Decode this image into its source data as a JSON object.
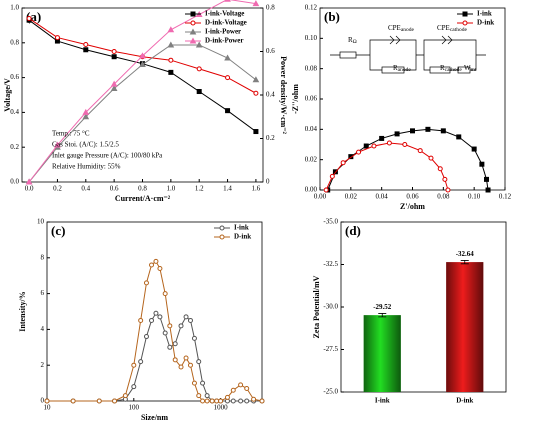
{
  "chart_data": [
    {
      "type": "line",
      "panel_label": "(a)",
      "xlabel": "Current/A·cm⁻²",
      "ylabel": "Voltage/V",
      "y2label": "Power density/W·cm⁻²",
      "x": [
        0,
        0.2,
        0.4,
        0.6,
        0.8,
        1.0,
        1.2,
        1.4,
        1.6
      ],
      "series": [
        {
          "name": "I-ink-Voltage",
          "color": "#000000",
          "marker": "square",
          "values": [
            0.93,
            0.81,
            0.76,
            0.72,
            0.68,
            0.63,
            0.52,
            0.41,
            0.29
          ]
        },
        {
          "name": "D-ink-Voltage",
          "color": "#e00000",
          "marker": "circle",
          "values": [
            0.94,
            0.83,
            0.79,
            0.75,
            0.72,
            0.7,
            0.65,
            0.6,
            0.51
          ]
        },
        {
          "name": "I-ink-Power",
          "color": "#808080",
          "marker": "triangle",
          "axis": "y2",
          "values": [
            0,
            0.16,
            0.3,
            0.43,
            0.54,
            0.63,
            0.63,
            0.57,
            0.47
          ]
        },
        {
          "name": "D-ink-Power",
          "color": "#f06ab0",
          "marker": "triangle",
          "axis": "y2",
          "values": [
            0,
            0.17,
            0.32,
            0.45,
            0.58,
            0.7,
            0.77,
            0.84,
            0.82
          ]
        }
      ],
      "xlim": [
        -0.05,
        1.65
      ],
      "xticks": [
        {
          "value": 0,
          "label": "0.0"
        },
        0.2,
        0.4,
        0.6,
        0.8,
        {
          "value": 1,
          "label": "1.0"
        },
        1.2,
        1.4,
        1.6
      ],
      "ylim": [
        0,
        1.0
      ],
      "yticks": [
        {
          "value": 0,
          "label": "0.0"
        },
        0.2,
        0.4,
        0.6,
        0.8,
        {
          "value": 1,
          "label": "1.0"
        }
      ],
      "y2lim": [
        0,
        0.8
      ],
      "y2ticks": [
        0,
        0.2,
        0.4,
        0.6,
        0.8
      ],
      "legend": "upper right",
      "annotations": [
        "Temp.: 75 °C",
        "Gas Stoi. (A/C): 1.5/2.5",
        "Inlet gauge Pressure (A/C): 100/80 kPa",
        "Relative Humidity: 55%"
      ]
    },
    {
      "type": "scatter",
      "panel_label": "(b)",
      "xlabel": "Z'/ohm",
      "ylabel": "-Z''/ohm",
      "series": [
        {
          "name": "I-ink",
          "color": "#000000",
          "marker": "square",
          "x": [
            0.005,
            0.01,
            0.02,
            0.03,
            0.04,
            0.05,
            0.06,
            0.07,
            0.08,
            0.09,
            0.1,
            0.105,
            0.108,
            0.109
          ],
          "values": [
            0,
            0.012,
            0.022,
            0.029,
            0.034,
            0.037,
            0.039,
            0.04,
            0.039,
            0.035,
            0.027,
            0.017,
            0.007,
            0
          ]
        },
        {
          "name": "D-ink",
          "color": "#e00000",
          "marker": "circle",
          "x": [
            0.004,
            0.008,
            0.015,
            0.025,
            0.035,
            0.045,
            0.055,
            0.065,
            0.072,
            0.078,
            0.081,
            0.083
          ],
          "values": [
            0,
            0.009,
            0.018,
            0.025,
            0.029,
            0.031,
            0.03,
            0.026,
            0.021,
            0.014,
            0.007,
            0
          ]
        }
      ],
      "xlim": [
        0,
        0.12
      ],
      "xticks": [
        {
          "value": 0,
          "label": "0.00"
        },
        {
          "value": 0.02,
          "label": "0.02"
        },
        {
          "value": 0.04,
          "label": "0.04"
        },
        {
          "value": 0.06,
          "label": "0.06"
        },
        {
          "value": 0.08,
          "label": "0.08"
        },
        {
          "value": 0.1,
          "label": "0.10"
        },
        {
          "value": 0.12,
          "label": "0.12"
        }
      ],
      "ylim": [
        0,
        0.12
      ],
      "yticks": [
        {
          "value": 0,
          "label": "0.00"
        },
        {
          "value": 0.02,
          "label": "0.02"
        },
        {
          "value": 0.04,
          "label": "0.04"
        },
        {
          "value": 0.06,
          "label": "0.06"
        },
        {
          "value": 0.08,
          "label": "0.08"
        },
        {
          "value": 0.1,
          "label": "0.10"
        },
        {
          "value": 0.12,
          "label": "0.12"
        }
      ],
      "legend": "upper right",
      "circuit": [
        {
          "text": "R",
          "sub": "Ω"
        },
        {
          "text": "CPE",
          "sub": "anode"
        },
        {
          "text": "R",
          "sub": "anode"
        },
        {
          "text": "CPE",
          "sub": "cathode"
        },
        {
          "text": "R",
          "sub": "cathode"
        },
        {
          "text": "W",
          "sub": "mt"
        }
      ]
    },
    {
      "type": "line",
      "panel_label": "(c)",
      "xlabel": "Size/nm",
      "ylabel": "Intensity/%",
      "xscale": "log",
      "x": [
        10,
        20,
        40,
        60,
        80,
        100,
        120,
        140,
        160,
        180,
        200,
        230,
        260,
        300,
        350,
        400,
        450,
        500,
        560,
        620,
        700,
        800,
        900,
        1000,
        1200,
        1400,
        1700,
        2000,
        2400,
        3000
      ],
      "series": [
        {
          "name": "I-ink",
          "color": "#555555",
          "marker": "circle",
          "values": [
            0,
            0,
            0,
            0,
            0.1,
            0.8,
            2.2,
            3.6,
            4.5,
            4.9,
            4.7,
            3.8,
            3.0,
            3.2,
            4.2,
            4.7,
            4.5,
            3.5,
            2.2,
            1.0,
            0.3,
            0,
            0,
            0,
            0,
            0,
            0,
            0,
            0,
            0
          ]
        },
        {
          "name": "D-ink",
          "color": "#b5651d",
          "marker": "circle",
          "values": [
            0,
            0,
            0,
            0,
            0.3,
            2.0,
            4.5,
            6.6,
            7.6,
            7.8,
            7.4,
            6.0,
            4.2,
            2.3,
            1.9,
            2.4,
            2.0,
            1.0,
            0.3,
            0,
            0,
            0,
            0,
            0,
            0.2,
            0.6,
            0.9,
            0.7,
            0.1,
            0
          ]
        }
      ],
      "xlim": [
        10,
        3000
      ],
      "xticks": [
        10,
        100,
        1000
      ],
      "ylim": [
        0,
        10
      ],
      "yticks": [
        0,
        2,
        4,
        6,
        8,
        10
      ],
      "legend": "upper right"
    },
    {
      "type": "bar",
      "panel_label": "(d)",
      "ylabel": "Zeta Potential/mV",
      "categories": [
        "I-ink",
        "D-ink"
      ],
      "values": [
        -29.52,
        -32.64
      ],
      "errors": [
        0.1,
        0.1
      ],
      "colors": [
        "#22dd22",
        "#ee1c1c"
      ],
      "ylim": [
        -25,
        -35
      ],
      "yticks": [
        {
          "value": -25,
          "label": "-25.0"
        },
        {
          "value": -27.5,
          "label": "-27.5"
        },
        {
          "value": -30,
          "label": "-30.0"
        },
        {
          "value": -32.5,
          "label": "-32.5"
        },
        {
          "value": -35,
          "label": "-35.0"
        }
      ]
    }
  ]
}
